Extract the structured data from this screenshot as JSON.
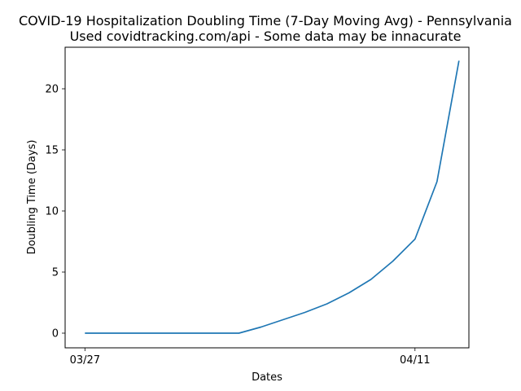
{
  "chart_data": {
    "type": "line",
    "title": "COVID-19 Hospitalization Doubling Time (7-Day Moving Avg) - Pennsylvania",
    "subtitle": "Used covidtracking.com/api - Some data may be innacurate",
    "xlabel": "Dates",
    "ylabel": "Doubling Time (Days)",
    "xlim": [
      "03/26",
      "04/13"
    ],
    "ylim": [
      -1.2,
      23.4
    ],
    "x_tick_labels": [
      "03/27",
      "04/11"
    ],
    "y_ticks": [
      0,
      5,
      10,
      15,
      20
    ],
    "grid": false,
    "legend": "none",
    "color": "#1f77b4",
    "x": [
      "03/27",
      "03/28",
      "03/29",
      "03/30",
      "03/31",
      "04/01",
      "04/02",
      "04/03",
      "04/04",
      "04/05",
      "04/06",
      "04/07",
      "04/08",
      "04/09",
      "04/10",
      "04/11",
      "04/12",
      "04/13"
    ],
    "series": [
      {
        "values": [
          0,
          0,
          0,
          0,
          0,
          0,
          0,
          0,
          0.5,
          1.1,
          1.7,
          2.4,
          3.3,
          4.4,
          5.9,
          7.7,
          12.4,
          22.3
        ]
      }
    ]
  }
}
